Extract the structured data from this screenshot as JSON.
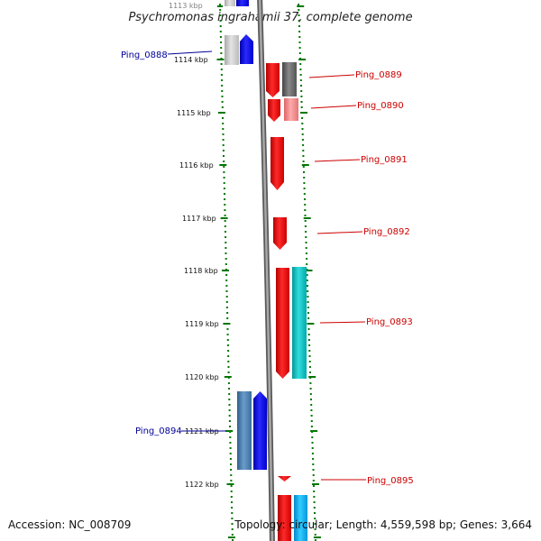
{
  "title": "Psychromonas ingrahamii 37, complete genome",
  "footer": {
    "accession": "Accession: NC_008709",
    "topology": "Topology: circular; Length: 4,559,598 bp; Genes: 3,664"
  },
  "scale_labels": [
    "1113 kbp",
    "1114 kbp",
    "1115 kbp",
    "1116 kbp",
    "1117 kbp",
    "1118 kbp",
    "1119 kbp",
    "1120 kbp",
    "1121 kbp",
    "1122 kbp"
  ],
  "gene_labels": [
    {
      "text": "Ping_0888",
      "strand": "reverse"
    },
    {
      "text": "Ping_0889",
      "strand": "forward"
    },
    {
      "text": "Ping_0890",
      "strand": "forward"
    },
    {
      "text": "Ping_0891",
      "strand": "forward"
    },
    {
      "text": "Ping_0892",
      "strand": "forward"
    },
    {
      "text": "Ping_0893",
      "strand": "forward"
    },
    {
      "text": "Ping_0894",
      "strand": "reverse"
    },
    {
      "text": "Ping_0895",
      "strand": "forward"
    }
  ],
  "colors": {
    "forward_gene": "#ff0000",
    "reverse_gene": "#0000ff",
    "backbone": "#808080",
    "ticks": "#007700",
    "cds_cyan": "#00cccc",
    "cds_steel": "#4682b4"
  }
}
